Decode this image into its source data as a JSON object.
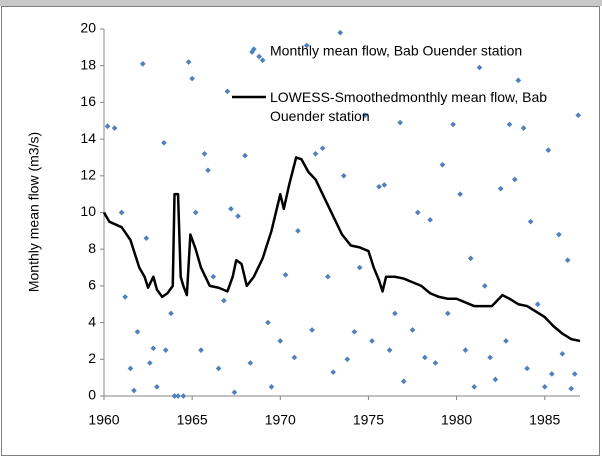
{
  "chart_data": {
    "type": "scatter",
    "y_label": "Monthly mean flow (m3/s)",
    "xlim": [
      1960,
      1987
    ],
    "xticks": [
      1960,
      1965,
      1970,
      1975,
      1980,
      1985
    ],
    "ylim": [
      0,
      20
    ],
    "yticks": [
      0,
      2,
      4,
      6,
      8,
      10,
      12,
      14,
      16,
      18,
      20
    ],
    "grid": false,
    "series": [
      {
        "name": "Monthly mean flow, Bab Ouender station",
        "type": "scatter",
        "color": "#4f81bd",
        "x": [
          1960.2,
          1960.6,
          1961.0,
          1961.2,
          1961.5,
          1961.7,
          1961.9,
          1962.2,
          1962.4,
          1962.6,
          1962.8,
          1963.0,
          1963.4,
          1963.5,
          1963.8,
          1964.0,
          1964.2,
          1964.5,
          1964.8,
          1965.0,
          1965.2,
          1965.5,
          1965.7,
          1965.9,
          1966.2,
          1966.5,
          1966.8,
          1967.0,
          1967.2,
          1967.4,
          1967.6,
          1968.0,
          1968.3,
          1968.5,
          1968.8,
          1969.0,
          1969.3,
          1969.5,
          1970.0,
          1970.3,
          1970.8,
          1971.0,
          1971.5,
          1971.8,
          1972.0,
          1972.4,
          1972.7,
          1973.0,
          1973.4,
          1973.6,
          1973.8,
          1974.2,
          1974.5,
          1974.8,
          1975.2,
          1975.6,
          1975.9,
          1976.2,
          1976.5,
          1976.8,
          1977.0,
          1977.5,
          1977.8,
          1978.2,
          1978.5,
          1978.8,
          1979.2,
          1979.5,
          1979.8,
          1980.2,
          1980.5,
          1980.8,
          1981.0,
          1981.3,
          1981.6,
          1981.9,
          1982.2,
          1982.5,
          1982.8,
          1983.0,
          1983.3,
          1983.5,
          1983.8,
          1984.0,
          1984.2,
          1984.6,
          1985.0,
          1985.2,
          1985.4,
          1985.8,
          1986.0,
          1986.3,
          1986.5,
          1986.7,
          1986.9
        ],
        "values": [
          14.7,
          14.6,
          10,
          5.4,
          1.5,
          0.3,
          3.5,
          18.1,
          8.6,
          1.8,
          2.6,
          0.5,
          13.8,
          2.5,
          4.5,
          0,
          0,
          0,
          18.2,
          17.3,
          10,
          2.5,
          13.2,
          12.3,
          6.5,
          1.5,
          5.2,
          16.6,
          10.2,
          0.2,
          9.8,
          13.1,
          1.8,
          18.9,
          18.5,
          18.3,
          4,
          0.5,
          3,
          6.6,
          2.1,
          9,
          19.1,
          3.6,
          13.2,
          13.5,
          6.5,
          1.3,
          19.8,
          12,
          2,
          3.5,
          7,
          15.3,
          3,
          11.4,
          11.5,
          2.5,
          4.5,
          14.9,
          0.8,
          3.6,
          10,
          2.1,
          9.6,
          1.8,
          12.6,
          4.5,
          14.8,
          11,
          2.5,
          7.5,
          0.5,
          17.9,
          6,
          2.1,
          0.9,
          11.3,
          3,
          14.8,
          11.8,
          17.2,
          14.6,
          1.5,
          9.5,
          5,
          0.5,
          13.4,
          1.2,
          8.8,
          2.3,
          7.4,
          0.4,
          1.2,
          15.3
        ]
      },
      {
        "name": "LOWESS-Smoothedmonthly mean flow, Bab Ouender station",
        "type": "line",
        "color": "#000000",
        "x": [
          1960.0,
          1960.3,
          1961.0,
          1961.5,
          1962.0,
          1962.3,
          1962.5,
          1962.8,
          1963.0,
          1963.3,
          1963.6,
          1963.9,
          1964.0,
          1964.2,
          1964.35,
          1964.5,
          1964.7,
          1964.9,
          1965.2,
          1965.5,
          1966.0,
          1966.5,
          1967.0,
          1967.3,
          1967.5,
          1967.8,
          1968.1,
          1968.5,
          1969.0,
          1969.5,
          1970.0,
          1970.2,
          1970.5,
          1970.9,
          1971.2,
          1971.6,
          1972.0,
          1972.5,
          1973.0,
          1973.5,
          1974.0,
          1974.5,
          1975.0,
          1975.3,
          1975.6,
          1975.8,
          1976.0,
          1976.5,
          1977.0,
          1977.5,
          1978.0,
          1978.5,
          1979.0,
          1979.5,
          1980.0,
          1980.5,
          1981.0,
          1981.5,
          1982.0,
          1982.6,
          1983.0,
          1983.5,
          1984.0,
          1984.5,
          1985.0,
          1985.5,
          1986.0,
          1986.5,
          1987.0
        ],
        "values": [
          10,
          9.5,
          9.2,
          8.5,
          7,
          6.5,
          5.9,
          6.5,
          5.8,
          5.4,
          5.6,
          6,
          11,
          11,
          6.5,
          6,
          5.5,
          8.8,
          8,
          7,
          6,
          5.9,
          5.7,
          6.5,
          7.4,
          7.2,
          6,
          6.5,
          7.5,
          9,
          11,
          10.2,
          11.5,
          13,
          12.9,
          12.2,
          11.8,
          10.8,
          9.8,
          8.8,
          8.2,
          8.1,
          7.9,
          7,
          6.3,
          5.7,
          6.5,
          6.5,
          6.4,
          6.2,
          6.0,
          5.6,
          5.4,
          5.3,
          5.3,
          5.1,
          4.9,
          4.9,
          4.9,
          5.5,
          5.3,
          5,
          4.9,
          4.6,
          4.3,
          3.8,
          3.4,
          3.1,
          3.0
        ]
      }
    ]
  }
}
